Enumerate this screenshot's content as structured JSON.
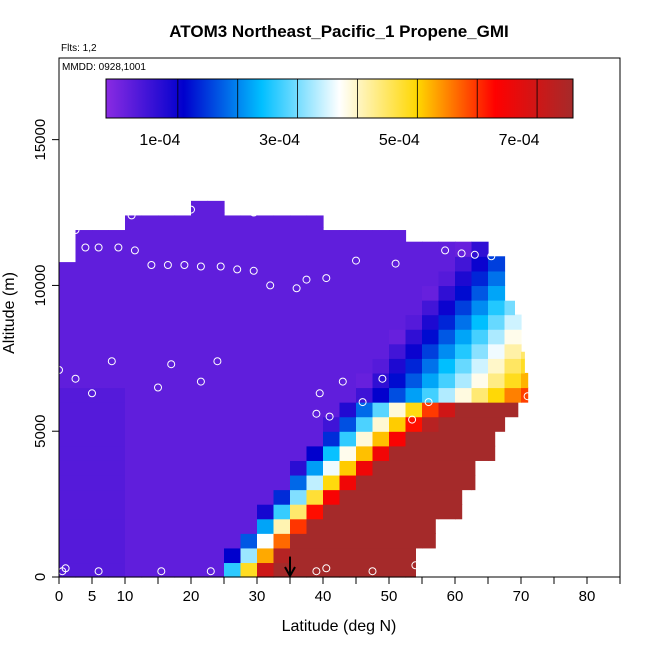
{
  "chart_data": {
    "type": "heatmap",
    "title": "ATOM3 Northeast_Pacific_1 Propene_GMI",
    "flights_label": "Flts: 1,2",
    "dates_label": "MMDD: 0928,1001",
    "xlabel": "Latitude (deg N)",
    "ylabel": "Altitude (m)",
    "xlim": [
      0,
      85
    ],
    "ylim": [
      0,
      17800
    ],
    "x_ticks": [
      0,
      5,
      10,
      20,
      30,
      40,
      50,
      60,
      70,
      80
    ],
    "y_ticks": [
      0,
      5000,
      10000,
      15000
    ],
    "colorbar": {
      "range": [
        0,
        0.00078
      ],
      "colors": [
        "#8a2be2",
        "#0000cd",
        "#00bfff",
        "#ffffff",
        "#ffd700",
        "#ff0000",
        "#a52a2a"
      ],
      "ticks": [
        0.0001,
        0.0003,
        0.0005,
        0.0007
      ],
      "tick_labels": [
        "1e-04",
        "3e-04",
        "5e-04",
        "7e-04"
      ],
      "placement": "top-inside"
    },
    "marker_latitude": 35,
    "observations": [
      [
        0,
        7100
      ],
      [
        2.5,
        6800
      ],
      [
        5,
        6300
      ],
      [
        8,
        7400
      ],
      [
        15,
        6500
      ],
      [
        17,
        7300
      ],
      [
        21.5,
        6700
      ],
      [
        24,
        7400
      ],
      [
        0.5,
        200
      ],
      [
        1,
        300
      ],
      [
        6,
        200
      ],
      [
        15.5,
        200
      ],
      [
        23,
        200
      ],
      [
        39,
        200
      ],
      [
        40.5,
        300
      ],
      [
        47.5,
        200
      ],
      [
        54,
        400
      ],
      [
        2.5,
        11900
      ],
      [
        4,
        11300
      ],
      [
        6,
        11300
      ],
      [
        9,
        11300
      ],
      [
        11.5,
        11200
      ],
      [
        11,
        12400
      ],
      [
        20,
        12600
      ],
      [
        26.5,
        12800
      ],
      [
        29.5,
        12500
      ],
      [
        14,
        10700
      ],
      [
        16.5,
        10700
      ],
      [
        19,
        10700
      ],
      [
        21.5,
        10650
      ],
      [
        24.5,
        10650
      ],
      [
        27,
        10550
      ],
      [
        29.5,
        10500
      ],
      [
        32,
        10000
      ],
      [
        36,
        9900
      ],
      [
        37.5,
        10200
      ],
      [
        40.5,
        10250
      ],
      [
        45,
        10850
      ],
      [
        51,
        10750
      ],
      [
        58.5,
        11200
      ],
      [
        61,
        11100
      ],
      [
        63,
        11050
      ],
      [
        65.5,
        11000
      ],
      [
        68.5,
        10900
      ],
      [
        39.5,
        6300
      ],
      [
        39,
        5600
      ],
      [
        41,
        5500
      ],
      [
        43,
        6700
      ],
      [
        46,
        6000
      ],
      [
        49,
        6800
      ],
      [
        53.5,
        5400
      ],
      [
        56,
        6000
      ],
      [
        71,
        6200
      ]
    ],
    "low_marker_points": [
      [
        38,
        200
      ]
    ]
  }
}
